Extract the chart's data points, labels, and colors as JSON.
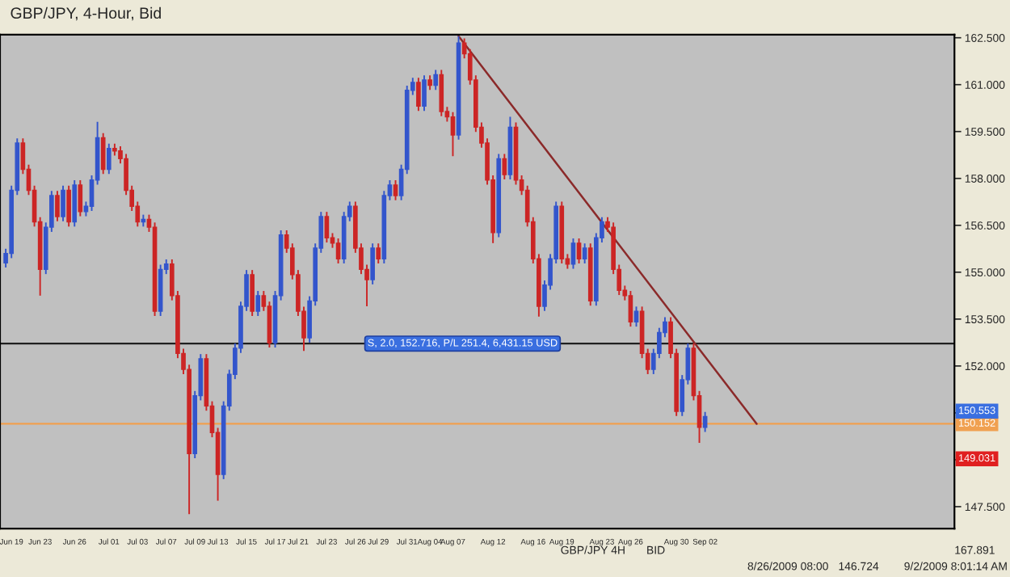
{
  "chart_data": {
    "type": "candlestick",
    "title": "GBP/JPY, 4-Hour, Bid",
    "categories": [
      null,
      "Jun 19",
      null,
      null,
      null,
      null,
      "Jun 23",
      null,
      null,
      null,
      null,
      null,
      "Jun 26",
      null,
      null,
      null,
      null,
      null,
      "Jul 01",
      null,
      null,
      null,
      null,
      "Jul 03",
      null,
      null,
      null,
      null,
      "Jul 07",
      null,
      null,
      null,
      null,
      "Jul 09",
      null,
      null,
      null,
      "Jul 13",
      null,
      null,
      null,
      null,
      "Jul 15",
      null,
      null,
      null,
      null,
      "Jul 17",
      null,
      null,
      null,
      "Jul 21",
      null,
      null,
      null,
      null,
      "Jul 23",
      null,
      null,
      null,
      null,
      "Jul 26",
      null,
      null,
      null,
      "Jul 29",
      null,
      null,
      null,
      null,
      "Jul 31",
      null,
      null,
      null,
      "Aug 04",
      null,
      null,
      null,
      "Aug 07",
      null,
      null,
      null,
      null,
      null,
      null,
      "Aug 12",
      null,
      null,
      null,
      null,
      null,
      null,
      "Aug 16",
      null,
      null,
      null,
      null,
      "Aug 19",
      null,
      null,
      null,
      null,
      null,
      null,
      "Aug 23",
      null,
      null,
      null,
      null,
      "Aug 26",
      null,
      null,
      null,
      null,
      null,
      null,
      null,
      "Aug 30",
      null,
      null,
      null,
      null,
      "Sep 02",
      null,
      null,
      null,
      null,
      null,
      null,
      null,
      null,
      null,
      null,
      null,
      null,
      null,
      null,
      null,
      null,
      null,
      null,
      null,
      null,
      null,
      null,
      null,
      null,
      null,
      null,
      null,
      null,
      null,
      null,
      null,
      null,
      null,
      null,
      null,
      null,
      null,
      null,
      null,
      null,
      null,
      null,
      null
    ],
    "ohlc": [
      [
        155.3,
        155.75,
        155.15,
        155.6
      ],
      [
        155.6,
        157.77,
        155.45,
        157.62
      ],
      [
        157.62,
        159.28,
        157.47,
        159.13
      ],
      [
        159.13,
        159.28,
        158.14,
        158.29
      ],
      [
        158.29,
        158.44,
        157.47,
        157.62
      ],
      [
        157.62,
        157.77,
        156.46,
        156.61
      ],
      [
        156.61,
        156.76,
        154.25,
        155.09
      ],
      [
        155.09,
        156.59,
        154.94,
        156.44
      ],
      [
        156.44,
        157.6,
        156.29,
        157.45
      ],
      [
        157.45,
        157.6,
        156.63,
        156.78
      ],
      [
        156.78,
        157.77,
        156.63,
        157.62
      ],
      [
        157.62,
        157.77,
        156.46,
        156.61
      ],
      [
        156.61,
        157.94,
        156.46,
        157.79
      ],
      [
        157.79,
        157.94,
        156.79,
        156.94
      ],
      [
        156.94,
        157.26,
        156.79,
        157.11
      ],
      [
        157.11,
        158.1,
        156.96,
        157.95
      ],
      [
        157.95,
        159.81,
        157.8,
        159.3
      ],
      [
        159.3,
        159.45,
        158.14,
        158.29
      ],
      [
        158.29,
        159.11,
        158.14,
        158.96
      ],
      [
        158.96,
        159.11,
        158.73,
        158.88
      ],
      [
        158.88,
        159.03,
        158.48,
        158.63
      ],
      [
        158.63,
        158.78,
        157.47,
        157.62
      ],
      [
        157.62,
        157.77,
        156.96,
        157.11
      ],
      [
        157.11,
        157.26,
        156.46,
        156.61
      ],
      [
        156.61,
        156.84,
        156.46,
        156.69
      ],
      [
        156.69,
        156.84,
        156.29,
        156.44
      ],
      [
        156.44,
        156.59,
        153.6,
        153.75
      ],
      [
        153.75,
        155.24,
        153.6,
        155.09
      ],
      [
        155.09,
        155.41,
        154.94,
        155.26
      ],
      [
        155.26,
        155.41,
        154.1,
        154.25
      ],
      [
        154.25,
        154.4,
        152.25,
        152.4
      ],
      [
        152.4,
        152.55,
        151.74,
        151.89
      ],
      [
        151.89,
        152.04,
        147.26,
        149.2
      ],
      [
        149.2,
        151.2,
        149.05,
        151.05
      ],
      [
        151.05,
        152.38,
        150.9,
        152.23
      ],
      [
        152.23,
        152.38,
        150.57,
        150.72
      ],
      [
        150.72,
        150.87,
        149.72,
        149.87
      ],
      [
        149.87,
        150.02,
        147.69,
        148.53
      ],
      [
        148.53,
        150.87,
        148.38,
        150.72
      ],
      [
        150.72,
        151.88,
        150.57,
        151.73
      ],
      [
        151.73,
        152.72,
        151.58,
        152.57
      ],
      [
        152.57,
        154.06,
        152.42,
        153.91
      ],
      [
        153.91,
        155.07,
        153.76,
        154.92
      ],
      [
        154.92,
        155.07,
        153.6,
        153.75
      ],
      [
        153.75,
        154.4,
        153.6,
        154.25
      ],
      [
        154.25,
        154.4,
        153.76,
        153.91
      ],
      [
        153.91,
        154.06,
        152.59,
        152.74
      ],
      [
        152.74,
        154.4,
        152.59,
        154.25
      ],
      [
        154.25,
        156.34,
        154.1,
        156.19
      ],
      [
        156.19,
        156.34,
        155.62,
        155.77
      ],
      [
        155.77,
        155.92,
        154.77,
        154.92
      ],
      [
        154.92,
        155.07,
        153.6,
        153.75
      ],
      [
        153.75,
        153.9,
        152.48,
        152.9
      ],
      [
        152.9,
        154.23,
        152.75,
        154.08
      ],
      [
        154.08,
        155.92,
        153.93,
        155.77
      ],
      [
        155.77,
        156.93,
        155.62,
        156.78
      ],
      [
        156.78,
        156.93,
        155.95,
        156.1
      ],
      [
        156.1,
        156.25,
        155.78,
        155.93
      ],
      [
        155.93,
        156.08,
        155.28,
        155.43
      ],
      [
        155.43,
        156.93,
        155.28,
        156.78
      ],
      [
        156.78,
        157.26,
        156.63,
        157.11
      ],
      [
        157.11,
        157.26,
        155.62,
        155.77
      ],
      [
        155.77,
        155.92,
        154.94,
        155.09
      ],
      [
        155.09,
        155.24,
        153.91,
        154.76
      ],
      [
        154.76,
        155.92,
        154.61,
        155.77
      ],
      [
        155.77,
        155.92,
        155.28,
        155.43
      ],
      [
        155.43,
        157.6,
        155.28,
        157.45
      ],
      [
        157.45,
        157.94,
        157.3,
        157.79
      ],
      [
        157.79,
        157.94,
        157.3,
        157.45
      ],
      [
        157.45,
        158.44,
        157.3,
        158.29
      ],
      [
        158.29,
        160.97,
        158.14,
        160.82
      ],
      [
        160.82,
        161.22,
        160.67,
        161.07
      ],
      [
        161.07,
        161.22,
        160.16,
        160.31
      ],
      [
        160.31,
        161.3,
        160.16,
        161.15
      ],
      [
        161.15,
        161.3,
        160.83,
        160.98
      ],
      [
        160.98,
        161.47,
        160.83,
        161.32
      ],
      [
        161.32,
        161.47,
        159.99,
        160.14
      ],
      [
        160.14,
        160.29,
        159.82,
        159.97
      ],
      [
        159.97,
        160.12,
        158.71,
        159.39
      ],
      [
        159.39,
        162.55,
        159.24,
        162.33
      ],
      [
        162.33,
        162.48,
        161.84,
        161.99
      ],
      [
        161.99,
        162.14,
        161.0,
        161.15
      ],
      [
        161.15,
        161.3,
        159.49,
        159.64
      ],
      [
        159.64,
        159.79,
        158.98,
        159.13
      ],
      [
        159.13,
        159.28,
        157.8,
        157.95
      ],
      [
        157.95,
        158.1,
        155.93,
        156.27
      ],
      [
        156.27,
        158.78,
        156.12,
        158.63
      ],
      [
        158.63,
        158.78,
        157.97,
        158.12
      ],
      [
        158.12,
        159.97,
        157.97,
        159.64
      ],
      [
        159.64,
        159.79,
        157.8,
        157.95
      ],
      [
        157.95,
        158.1,
        157.47,
        157.62
      ],
      [
        157.62,
        157.77,
        156.46,
        156.61
      ],
      [
        156.61,
        156.76,
        155.28,
        155.43
      ],
      [
        155.43,
        155.58,
        153.58,
        153.91
      ],
      [
        153.91,
        154.74,
        153.76,
        154.59
      ],
      [
        154.59,
        155.58,
        154.44,
        155.43
      ],
      [
        155.43,
        157.26,
        155.28,
        157.11
      ],
      [
        157.11,
        157.26,
        155.28,
        155.43
      ],
      [
        155.43,
        155.58,
        155.11,
        155.26
      ],
      [
        155.26,
        156.08,
        155.11,
        155.93
      ],
      [
        155.93,
        156.08,
        155.28,
        155.43
      ],
      [
        155.43,
        155.92,
        155.28,
        155.77
      ],
      [
        155.77,
        155.92,
        153.93,
        154.08
      ],
      [
        154.08,
        156.25,
        153.93,
        156.1
      ],
      [
        156.1,
        156.76,
        155.95,
        156.61
      ],
      [
        156.61,
        156.76,
        156.29,
        156.44
      ],
      [
        156.44,
        156.59,
        154.94,
        155.09
      ],
      [
        155.09,
        155.24,
        154.27,
        154.42
      ],
      [
        154.42,
        154.57,
        154.1,
        154.25
      ],
      [
        154.25,
        154.4,
        153.26,
        153.41
      ],
      [
        153.41,
        153.9,
        153.26,
        153.75
      ],
      [
        153.75,
        153.9,
        152.25,
        152.4
      ],
      [
        152.4,
        152.55,
        151.74,
        151.89
      ],
      [
        151.89,
        152.55,
        151.74,
        152.4
      ],
      [
        152.4,
        153.22,
        152.25,
        153.07
      ],
      [
        153.07,
        153.56,
        152.92,
        153.41
      ],
      [
        153.41,
        153.56,
        152.25,
        152.4
      ],
      [
        152.4,
        152.55,
        150.4,
        150.55
      ],
      [
        150.55,
        151.71,
        150.4,
        151.56
      ],
      [
        151.56,
        152.72,
        151.41,
        152.57
      ],
      [
        152.57,
        152.72,
        150.9,
        151.05
      ],
      [
        151.05,
        151.2,
        149.54,
        150.04
      ],
      [
        150.04,
        150.53,
        149.89,
        150.38
      ],
      null,
      null,
      null,
      null,
      null,
      null,
      null,
      null,
      null,
      null,
      null,
      null,
      null,
      null,
      null,
      null,
      null,
      null,
      null,
      null,
      null,
      null,
      null,
      null,
      null,
      null,
      null,
      null,
      null,
      null,
      null,
      null,
      null,
      null,
      null,
      null,
      null,
      null,
      null,
      null,
      null,
      null,
      null
    ],
    "series": [
      {
        "type": "line",
        "color": "#8b2a2a",
        "values": [
          null,
          null,
          null,
          null,
          null,
          null,
          null,
          null,
          null,
          null,
          null,
          null,
          null,
          null,
          null,
          null,
          null,
          null,
          null,
          null,
          null,
          null,
          null,
          null,
          null,
          null,
          null,
          null,
          null,
          null,
          null,
          null,
          null,
          null,
          null,
          null,
          null,
          null,
          null,
          null,
          null,
          null,
          null,
          null,
          null,
          null,
          null,
          null,
          null,
          null,
          null,
          null,
          null,
          null,
          null,
          null,
          null,
          null,
          null,
          null,
          null,
          null,
          null,
          null,
          null,
          null,
          null,
          null,
          null,
          null,
          null,
          null,
          null,
          null,
          null,
          null,
          null,
          null,
          null,
          162.55,
          null,
          null,
          null,
          null,
          null,
          null,
          null,
          null,
          null,
          null,
          null,
          null,
          null,
          null,
          null,
          null,
          null,
          null,
          null,
          null,
          null,
          null,
          null,
          null,
          null,
          null,
          null,
          null,
          null,
          null,
          null,
          null,
          null,
          null,
          null,
          null,
          null,
          null,
          null,
          null,
          null,
          null,
          null,
          null,
          null,
          null,
          null,
          null,
          null,
          null,
          null,
          150.15,
          null,
          null,
          null,
          null,
          null,
          null,
          null,
          null,
          null,
          null,
          null,
          null,
          null,
          null,
          null,
          null,
          null,
          null,
          null,
          null,
          null,
          null,
          null,
          null,
          null,
          null,
          null,
          null,
          null,
          null,
          null,
          null,
          null,
          null
        ]
      }
    ],
    "ref_lines": [
      {
        "axis": "y",
        "value": 152.716,
        "label": "S, 2.0, 152.716, P/L 251.4, 6,431.15 USD",
        "color": "#202020",
        "line_style": "solid"
      },
      {
        "axis": "y",
        "value": 150.152,
        "label": "150.152",
        "color": "#f0a050",
        "line_style": "solid"
      }
    ],
    "ylim": [
      146.8,
      162.6
    ],
    "yticks": [
      {
        "value": 147.5,
        "label": "147.500"
      },
      {
        "value": 149.0,
        "label": null
      },
      {
        "value": 150.5,
        "label": null
      },
      {
        "value": 152.0,
        "label": "152.000"
      },
      {
        "value": 153.5,
        "label": "153.500"
      },
      {
        "value": 155.0,
        "label": "155.000"
      },
      {
        "value": 156.5,
        "label": "156.500"
      },
      {
        "value": 158.0,
        "label": "158.000"
      },
      {
        "value": 159.5,
        "label": "159.500"
      },
      {
        "value": 161.0,
        "label": "161.000"
      },
      {
        "value": 162.5,
        "label": "162.500"
      }
    ],
    "grid": false,
    "legend": false,
    "annotations": [
      {
        "text": "150.553",
        "y": 150.553
      },
      {
        "text": "149.031",
        "y": 149.031
      },
      "GBP/JPY",
      "4H",
      "BID",
      "167.891",
      "8/26/2009 08:00",
      "146.724",
      "9/2/2009 8:01:14 AM"
    ]
  }
}
